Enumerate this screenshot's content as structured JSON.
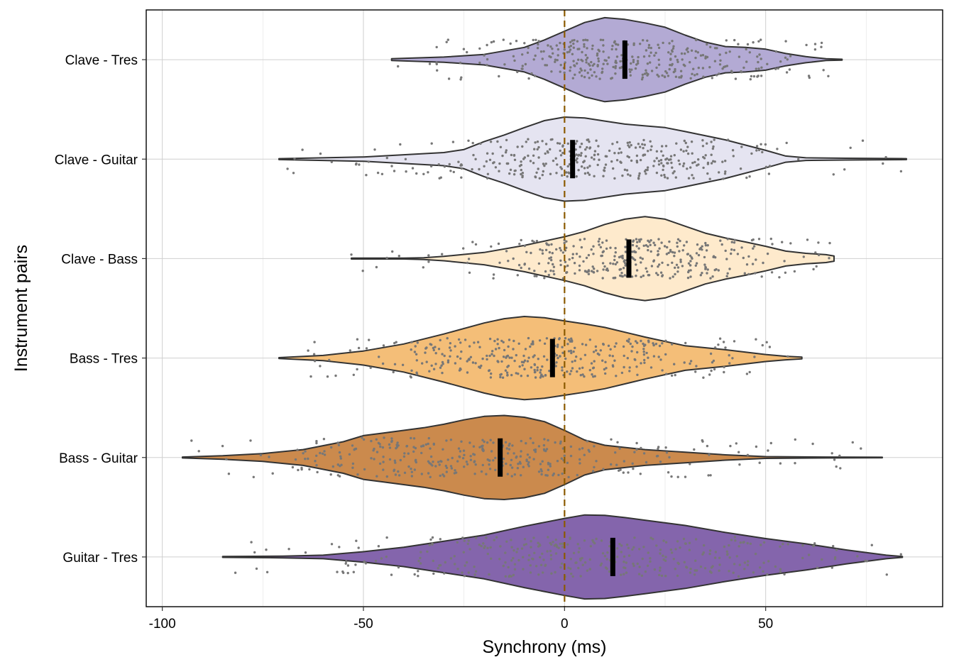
{
  "chart_data": {
    "type": "violin",
    "xlabel": "Synchrony (ms)",
    "ylabel": "Instrument pairs",
    "xlim": [
      -104,
      94
    ],
    "xticks": [
      -100,
      -50,
      0,
      50
    ],
    "xtick_labels": [
      "-100",
      "-50",
      "0",
      "50"
    ],
    "reference_line": {
      "x": 0,
      "style": "dashed",
      "color": "#8B5A00"
    },
    "grid": true,
    "legend": "none",
    "categories": [
      "Clave - Tres",
      "Clave - Guitar",
      "Clave - Bass",
      "Bass - Tres",
      "Bass - Guitar",
      "Guitar - Tres"
    ],
    "series": [
      {
        "category": "Clave - Tres",
        "color": "#B3AAD4",
        "min": -43,
        "max": 69,
        "median": 15,
        "density": [
          [
            -43,
            0.02
          ],
          [
            -30,
            0.06
          ],
          [
            -20,
            0.12
          ],
          [
            -10,
            0.28
          ],
          [
            -5,
            0.45
          ],
          [
            0,
            0.65
          ],
          [
            5,
            0.85
          ],
          [
            10,
            0.96
          ],
          [
            15,
            0.92
          ],
          [
            20,
            0.84
          ],
          [
            25,
            0.74
          ],
          [
            30,
            0.56
          ],
          [
            35,
            0.4
          ],
          [
            40,
            0.3
          ],
          [
            45,
            0.28
          ],
          [
            50,
            0.24
          ],
          [
            55,
            0.14
          ],
          [
            60,
            0.07
          ],
          [
            65,
            0.02
          ],
          [
            69,
            0.01
          ]
        ]
      },
      {
        "category": "Clave - Guitar",
        "color": "#E5E4F1",
        "min": -71,
        "max": 85,
        "median": 2,
        "density": [
          [
            -71,
            0.01
          ],
          [
            -60,
            0.03
          ],
          [
            -50,
            0.05
          ],
          [
            -40,
            0.1
          ],
          [
            -30,
            0.15
          ],
          [
            -25,
            0.22
          ],
          [
            -20,
            0.4
          ],
          [
            -15,
            0.55
          ],
          [
            -10,
            0.72
          ],
          [
            -5,
            0.88
          ],
          [
            0,
            0.96
          ],
          [
            5,
            0.94
          ],
          [
            10,
            0.87
          ],
          [
            15,
            0.8
          ],
          [
            20,
            0.76
          ],
          [
            25,
            0.72
          ],
          [
            30,
            0.63
          ],
          [
            40,
            0.44
          ],
          [
            50,
            0.2
          ],
          [
            55,
            0.07
          ],
          [
            60,
            0.03
          ],
          [
            70,
            0.02
          ],
          [
            85,
            0.01
          ]
        ]
      },
      {
        "category": "Clave - Bass",
        "color": "#FEEACC",
        "min": -53,
        "max": 67,
        "median": 16,
        "density": [
          [
            -53,
            0.01
          ],
          [
            -40,
            0.01
          ],
          [
            -35,
            0.02
          ],
          [
            -30,
            0.05
          ],
          [
            -20,
            0.14
          ],
          [
            -10,
            0.3
          ],
          [
            0,
            0.5
          ],
          [
            5,
            0.62
          ],
          [
            10,
            0.78
          ],
          [
            15,
            0.9
          ],
          [
            20,
            0.96
          ],
          [
            25,
            0.9
          ],
          [
            30,
            0.74
          ],
          [
            35,
            0.58
          ],
          [
            40,
            0.47
          ],
          [
            45,
            0.38
          ],
          [
            50,
            0.28
          ],
          [
            55,
            0.17
          ],
          [
            60,
            0.12
          ],
          [
            65,
            0.09
          ],
          [
            67,
            0.06
          ]
        ]
      },
      {
        "category": "Bass - Tres",
        "color": "#F4BE78",
        "min": -71,
        "max": 59,
        "median": -3,
        "density": [
          [
            -71,
            0.01
          ],
          [
            -60,
            0.06
          ],
          [
            -50,
            0.16
          ],
          [
            -40,
            0.32
          ],
          [
            -30,
            0.55
          ],
          [
            -20,
            0.8
          ],
          [
            -15,
            0.9
          ],
          [
            -10,
            0.95
          ],
          [
            -5,
            0.92
          ],
          [
            0,
            0.85
          ],
          [
            5,
            0.78
          ],
          [
            10,
            0.7
          ],
          [
            20,
            0.48
          ],
          [
            30,
            0.28
          ],
          [
            40,
            0.19
          ],
          [
            50,
            0.08
          ],
          [
            55,
            0.04
          ],
          [
            59,
            0.02
          ]
        ]
      },
      {
        "category": "Bass - Guitar",
        "color": "#CB8A4D",
        "min": -95,
        "max": 79,
        "median": -16,
        "density": [
          [
            -95,
            0.01
          ],
          [
            -85,
            0.04
          ],
          [
            -75,
            0.09
          ],
          [
            -65,
            0.18
          ],
          [
            -55,
            0.36
          ],
          [
            -50,
            0.5
          ],
          [
            -45,
            0.56
          ],
          [
            -40,
            0.62
          ],
          [
            -35,
            0.68
          ],
          [
            -30,
            0.76
          ],
          [
            -25,
            0.86
          ],
          [
            -20,
            0.94
          ],
          [
            -15,
            0.96
          ],
          [
            -10,
            0.92
          ],
          [
            -5,
            0.82
          ],
          [
            0,
            0.62
          ],
          [
            5,
            0.4
          ],
          [
            10,
            0.28
          ],
          [
            20,
            0.18
          ],
          [
            30,
            0.12
          ],
          [
            40,
            0.06
          ],
          [
            50,
            0.02
          ],
          [
            65,
            0.01
          ],
          [
            79,
            0.005
          ]
        ]
      },
      {
        "category": "Guitar - Tres",
        "color": "#8465AC",
        "min": -85,
        "max": 84,
        "median": 12,
        "density": [
          [
            -85,
            0.01
          ],
          [
            -70,
            0.02
          ],
          [
            -60,
            0.04
          ],
          [
            -50,
            0.12
          ],
          [
            -40,
            0.22
          ],
          [
            -30,
            0.36
          ],
          [
            -20,
            0.5
          ],
          [
            -10,
            0.7
          ],
          [
            0,
            0.88
          ],
          [
            5,
            0.96
          ],
          [
            10,
            0.95
          ],
          [
            15,
            0.9
          ],
          [
            20,
            0.84
          ],
          [
            30,
            0.72
          ],
          [
            40,
            0.56
          ],
          [
            50,
            0.42
          ],
          [
            60,
            0.3
          ],
          [
            70,
            0.16
          ],
          [
            80,
            0.04
          ],
          [
            84,
            0.01
          ]
        ]
      }
    ]
  }
}
